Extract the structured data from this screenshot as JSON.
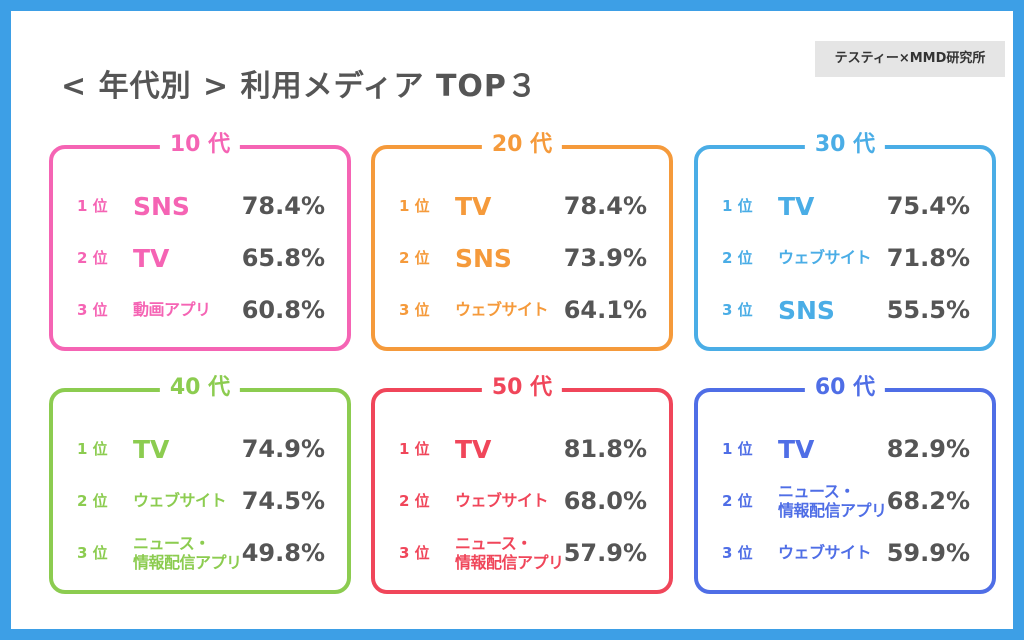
{
  "header": {
    "title": "< 年代別 > 利用メディア TOP３",
    "credit": "テスティー×MMD研究所"
  },
  "chart_data": {
    "type": "table",
    "title": "< 年代別 > 利用メディア TOP３",
    "groups": [
      {
        "label": "10 代",
        "color": "#f564b4",
        "rows": [
          {
            "rank": "1 位",
            "media": "SNS",
            "value": "78.4%"
          },
          {
            "rank": "2 位",
            "media": "TV",
            "value": "65.8%"
          },
          {
            "rank": "3 位",
            "media": "動画アプリ",
            "value": "60.8%"
          }
        ]
      },
      {
        "label": "20 代",
        "color": "#f59a3b",
        "rows": [
          {
            "rank": "1 位",
            "media": "TV",
            "value": "78.4%"
          },
          {
            "rank": "2 位",
            "media": "SNS",
            "value": "73.9%"
          },
          {
            "rank": "3 位",
            "media": "ウェブサイト",
            "value": "64.1%"
          }
        ]
      },
      {
        "label": "30 代",
        "color": "#4aade6",
        "rows": [
          {
            "rank": "1 位",
            "media": "TV",
            "value": "75.4%"
          },
          {
            "rank": "2 位",
            "media": "ウェブサイト",
            "value": "71.8%"
          },
          {
            "rank": "3 位",
            "media": "SNS",
            "value": "55.5%"
          }
        ]
      },
      {
        "label": "40 代",
        "color": "#8ccc50",
        "rows": [
          {
            "rank": "1 位",
            "media": "TV",
            "value": "74.9%"
          },
          {
            "rank": "2 位",
            "media": "ウェブサイト",
            "value": "74.5%"
          },
          {
            "rank": "3 位",
            "media": "ニュース・\n情報配信アプリ",
            "value": "49.8%"
          }
        ]
      },
      {
        "label": "50 代",
        "color": "#f0465a",
        "rows": [
          {
            "rank": "1 位",
            "media": "TV",
            "value": "81.8%"
          },
          {
            "rank": "2 位",
            "media": "ウェブサイト",
            "value": "68.0%"
          },
          {
            "rank": "3 位",
            "media": "ニュース・\n情報配信アプリ",
            "value": "57.9%"
          }
        ]
      },
      {
        "label": "60 代",
        "color": "#4f6ee6",
        "rows": [
          {
            "rank": "1 位",
            "media": "TV",
            "value": "82.9%"
          },
          {
            "rank": "2 位",
            "media": "ニュース・\n情報配信アプリ",
            "value": "68.2%"
          },
          {
            "rank": "3 位",
            "media": "ウェブサイト",
            "value": "59.9%"
          }
        ]
      }
    ]
  }
}
